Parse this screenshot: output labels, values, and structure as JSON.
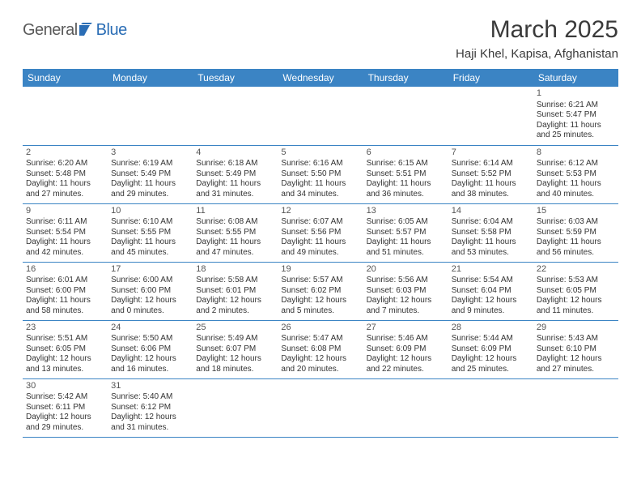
{
  "logo": {
    "left": "General",
    "right": "Blue"
  },
  "title": "March 2025",
  "location": "Haji Khel, Kapisa, Afghanistan",
  "colors": {
    "header_bg": "#3b84c4",
    "header_text": "#ffffff",
    "border": "#3b84c4",
    "logo_left": "#5a5a5a",
    "logo_right": "#2a6db5"
  },
  "dayNames": [
    "Sunday",
    "Monday",
    "Tuesday",
    "Wednesday",
    "Thursday",
    "Friday",
    "Saturday"
  ],
  "weeks": [
    [
      null,
      null,
      null,
      null,
      null,
      null,
      {
        "n": "1",
        "sr": "6:21 AM",
        "ss": "5:47 PM",
        "dl": "11 hours and 25 minutes."
      }
    ],
    [
      {
        "n": "2",
        "sr": "6:20 AM",
        "ss": "5:48 PM",
        "dl": "11 hours and 27 minutes."
      },
      {
        "n": "3",
        "sr": "6:19 AM",
        "ss": "5:49 PM",
        "dl": "11 hours and 29 minutes."
      },
      {
        "n": "4",
        "sr": "6:18 AM",
        "ss": "5:49 PM",
        "dl": "11 hours and 31 minutes."
      },
      {
        "n": "5",
        "sr": "6:16 AM",
        "ss": "5:50 PM",
        "dl": "11 hours and 34 minutes."
      },
      {
        "n": "6",
        "sr": "6:15 AM",
        "ss": "5:51 PM",
        "dl": "11 hours and 36 minutes."
      },
      {
        "n": "7",
        "sr": "6:14 AM",
        "ss": "5:52 PM",
        "dl": "11 hours and 38 minutes."
      },
      {
        "n": "8",
        "sr": "6:12 AM",
        "ss": "5:53 PM",
        "dl": "11 hours and 40 minutes."
      }
    ],
    [
      {
        "n": "9",
        "sr": "6:11 AM",
        "ss": "5:54 PM",
        "dl": "11 hours and 42 minutes."
      },
      {
        "n": "10",
        "sr": "6:10 AM",
        "ss": "5:55 PM",
        "dl": "11 hours and 45 minutes."
      },
      {
        "n": "11",
        "sr": "6:08 AM",
        "ss": "5:55 PM",
        "dl": "11 hours and 47 minutes."
      },
      {
        "n": "12",
        "sr": "6:07 AM",
        "ss": "5:56 PM",
        "dl": "11 hours and 49 minutes."
      },
      {
        "n": "13",
        "sr": "6:05 AM",
        "ss": "5:57 PM",
        "dl": "11 hours and 51 minutes."
      },
      {
        "n": "14",
        "sr": "6:04 AM",
        "ss": "5:58 PM",
        "dl": "11 hours and 53 minutes."
      },
      {
        "n": "15",
        "sr": "6:03 AM",
        "ss": "5:59 PM",
        "dl": "11 hours and 56 minutes."
      }
    ],
    [
      {
        "n": "16",
        "sr": "6:01 AM",
        "ss": "6:00 PM",
        "dl": "11 hours and 58 minutes."
      },
      {
        "n": "17",
        "sr": "6:00 AM",
        "ss": "6:00 PM",
        "dl": "12 hours and 0 minutes."
      },
      {
        "n": "18",
        "sr": "5:58 AM",
        "ss": "6:01 PM",
        "dl": "12 hours and 2 minutes."
      },
      {
        "n": "19",
        "sr": "5:57 AM",
        "ss": "6:02 PM",
        "dl": "12 hours and 5 minutes."
      },
      {
        "n": "20",
        "sr": "5:56 AM",
        "ss": "6:03 PM",
        "dl": "12 hours and 7 minutes."
      },
      {
        "n": "21",
        "sr": "5:54 AM",
        "ss": "6:04 PM",
        "dl": "12 hours and 9 minutes."
      },
      {
        "n": "22",
        "sr": "5:53 AM",
        "ss": "6:05 PM",
        "dl": "12 hours and 11 minutes."
      }
    ],
    [
      {
        "n": "23",
        "sr": "5:51 AM",
        "ss": "6:05 PM",
        "dl": "12 hours and 13 minutes."
      },
      {
        "n": "24",
        "sr": "5:50 AM",
        "ss": "6:06 PM",
        "dl": "12 hours and 16 minutes."
      },
      {
        "n": "25",
        "sr": "5:49 AM",
        "ss": "6:07 PM",
        "dl": "12 hours and 18 minutes."
      },
      {
        "n": "26",
        "sr": "5:47 AM",
        "ss": "6:08 PM",
        "dl": "12 hours and 20 minutes."
      },
      {
        "n": "27",
        "sr": "5:46 AM",
        "ss": "6:09 PM",
        "dl": "12 hours and 22 minutes."
      },
      {
        "n": "28",
        "sr": "5:44 AM",
        "ss": "6:09 PM",
        "dl": "12 hours and 25 minutes."
      },
      {
        "n": "29",
        "sr": "5:43 AM",
        "ss": "6:10 PM",
        "dl": "12 hours and 27 minutes."
      }
    ],
    [
      {
        "n": "30",
        "sr": "5:42 AM",
        "ss": "6:11 PM",
        "dl": "12 hours and 29 minutes."
      },
      {
        "n": "31",
        "sr": "5:40 AM",
        "ss": "6:12 PM",
        "dl": "12 hours and 31 minutes."
      },
      null,
      null,
      null,
      null,
      null
    ]
  ],
  "labels": {
    "sunrise": "Sunrise:",
    "sunset": "Sunset:",
    "daylight": "Daylight:"
  }
}
